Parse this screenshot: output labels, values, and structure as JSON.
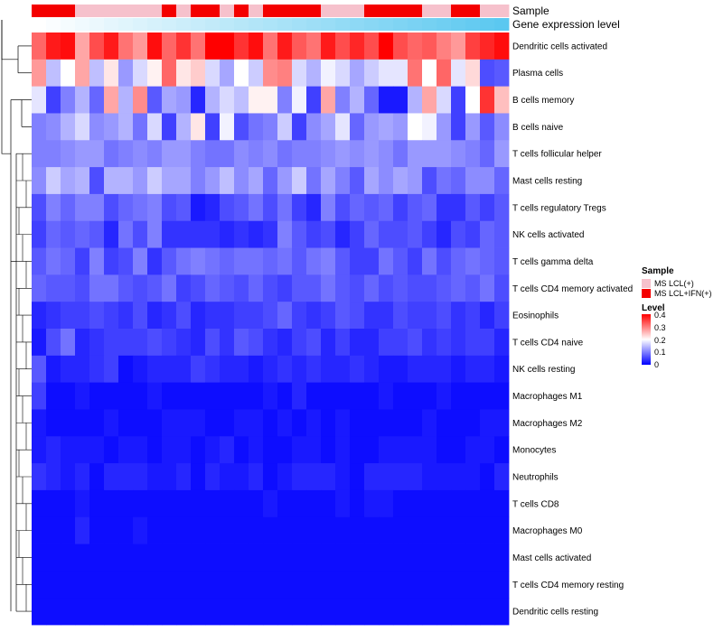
{
  "chart_data": {
    "type": "heatmap",
    "title": "",
    "annotations": {
      "sample_label": "Sample",
      "expression_label": "Gene expression level",
      "sample_groups": [
        "MS LCL(+)",
        "MS LCL+IFN(+)"
      ],
      "sample_colors": {
        "MS LCL(+)": "#f6c1cc",
        "MS LCL+IFN(+)": "#f40000"
      },
      "sample_assignment": [
        1,
        1,
        1,
        0,
        0,
        0,
        0,
        0,
        0,
        1,
        0,
        1,
        1,
        0,
        1,
        0,
        1,
        1,
        1,
        1,
        0,
        0,
        0,
        1,
        1,
        1,
        1,
        0,
        0,
        1,
        1,
        0,
        0
      ],
      "expression_gradient": [
        "#ffffff",
        "#5bc8f0"
      ]
    },
    "rows": [
      "Dendritic cells activated",
      "Plasma cells",
      "B cells memory",
      "B cells naive",
      "T cells follicular helper",
      "Mast cells resting",
      "T cells regulatory  Tregs",
      "NK cells activated",
      "T cells gamma delta",
      "T cells CD4 memory activated",
      "Eosinophils",
      "T cells CD4 naive",
      "NK cells resting",
      "Macrophages M1",
      "Macrophages M2",
      "Monocytes",
      "Neutrophils",
      "T cells CD8",
      "Macrophages M0",
      "Mast cells activated",
      "T cells CD4 memory resting",
      "Dendritic cells resting"
    ],
    "values": [
      [
        0.32,
        0.38,
        0.39,
        0.27,
        0.34,
        0.38,
        0.31,
        0.28,
        0.39,
        0.32,
        0.36,
        0.31,
        0.4,
        0.4,
        0.36,
        0.39,
        0.31,
        0.38,
        0.33,
        0.31,
        0.38,
        0.34,
        0.37,
        0.34,
        0.4,
        0.34,
        0.32,
        0.33,
        0.3,
        0.28,
        0.35,
        0.37,
        0.39
      ],
      [
        0.28,
        0.15,
        0.2,
        0.27,
        0.15,
        0.22,
        0.12,
        0.17,
        0.21,
        0.32,
        0.22,
        0.24,
        0.17,
        0.13,
        0.2,
        0.16,
        0.29,
        0.3,
        0.17,
        0.14,
        0.19,
        0.17,
        0.13,
        0.16,
        0.18,
        0.18,
        0.31,
        0.2,
        0.32,
        0.18,
        0.23,
        0.06,
        0.07
      ],
      [
        0.18,
        0.05,
        0.1,
        0.14,
        0.08,
        0.27,
        0.14,
        0.29,
        0.07,
        0.13,
        0.12,
        0.03,
        0.14,
        0.17,
        0.15,
        0.21,
        0.21,
        0.1,
        0.19,
        0.05,
        0.27,
        0.1,
        0.14,
        0.08,
        0.02,
        0.02,
        0.14,
        0.27,
        0.17,
        0.05,
        0.2,
        0.36,
        0.25
      ],
      [
        0.1,
        0.11,
        0.14,
        0.17,
        0.11,
        0.12,
        0.14,
        0.09,
        0.17,
        0.05,
        0.14,
        0.22,
        0.05,
        0.19,
        0.06,
        0.09,
        0.1,
        0.16,
        0.05,
        0.11,
        0.13,
        0.18,
        0.08,
        0.12,
        0.13,
        0.12,
        0.2,
        0.19,
        0.12,
        0.05,
        0.12,
        0.07,
        0.11
      ],
      [
        0.1,
        0.1,
        0.11,
        0.12,
        0.12,
        0.09,
        0.1,
        0.11,
        0.1,
        0.12,
        0.12,
        0.1,
        0.09,
        0.09,
        0.11,
        0.1,
        0.11,
        0.09,
        0.1,
        0.1,
        0.11,
        0.12,
        0.11,
        0.12,
        0.11,
        0.09,
        0.12,
        0.12,
        0.12,
        0.11,
        0.1,
        0.08,
        0.12
      ],
      [
        0.11,
        0.16,
        0.13,
        0.14,
        0.06,
        0.14,
        0.14,
        0.12,
        0.16,
        0.13,
        0.13,
        0.1,
        0.12,
        0.15,
        0.11,
        0.13,
        0.08,
        0.12,
        0.16,
        0.09,
        0.13,
        0.1,
        0.07,
        0.13,
        0.11,
        0.13,
        0.12,
        0.06,
        0.09,
        0.08,
        0.11,
        0.11,
        0.08
      ],
      [
        0.06,
        0.1,
        0.08,
        0.1,
        0.1,
        0.06,
        0.08,
        0.09,
        0.1,
        0.06,
        0.07,
        0.02,
        0.03,
        0.06,
        0.07,
        0.09,
        0.06,
        0.09,
        0.05,
        0.03,
        0.1,
        0.06,
        0.08,
        0.07,
        0.08,
        0.05,
        0.07,
        0.08,
        0.04,
        0.04,
        0.07,
        0.05,
        0.07
      ],
      [
        0.05,
        0.08,
        0.07,
        0.08,
        0.07,
        0.03,
        0.09,
        0.06,
        0.1,
        0.04,
        0.04,
        0.04,
        0.04,
        0.03,
        0.04,
        0.03,
        0.04,
        0.1,
        0.07,
        0.05,
        0.06,
        0.03,
        0.05,
        0.08,
        0.06,
        0.06,
        0.07,
        0.05,
        0.03,
        0.06,
        0.05,
        0.08,
        0.07
      ],
      [
        0.07,
        0.09,
        0.08,
        0.05,
        0.1,
        0.05,
        0.06,
        0.1,
        0.04,
        0.07,
        0.09,
        0.1,
        0.09,
        0.08,
        0.09,
        0.09,
        0.08,
        0.09,
        0.07,
        0.09,
        0.1,
        0.07,
        0.05,
        0.05,
        0.09,
        0.07,
        0.05,
        0.09,
        0.06,
        0.08,
        0.09,
        0.08,
        0.07
      ],
      [
        0.08,
        0.07,
        0.07,
        0.06,
        0.09,
        0.09,
        0.07,
        0.06,
        0.07,
        0.09,
        0.05,
        0.06,
        0.08,
        0.07,
        0.06,
        0.08,
        0.06,
        0.05,
        0.07,
        0.07,
        0.09,
        0.07,
        0.06,
        0.08,
        0.06,
        0.07,
        0.06,
        0.06,
        0.07,
        0.08,
        0.07,
        0.09,
        0.06
      ],
      [
        0.03,
        0.04,
        0.05,
        0.05,
        0.06,
        0.05,
        0.04,
        0.06,
        0.03,
        0.04,
        0.06,
        0.03,
        0.04,
        0.04,
        0.05,
        0.05,
        0.06,
        0.08,
        0.05,
        0.04,
        0.05,
        0.07,
        0.06,
        0.04,
        0.04,
        0.06,
        0.05,
        0.05,
        0.06,
        0.04,
        0.05,
        0.03,
        0.05
      ],
      [
        0.02,
        0.06,
        0.09,
        0.03,
        0.04,
        0.05,
        0.05,
        0.05,
        0.06,
        0.05,
        0.04,
        0.03,
        0.06,
        0.04,
        0.07,
        0.06,
        0.04,
        0.03,
        0.05,
        0.06,
        0.03,
        0.05,
        0.03,
        0.03,
        0.05,
        0.05,
        0.06,
        0.04,
        0.05,
        0.04,
        0.05,
        0.05,
        0.03
      ],
      [
        0.07,
        0.02,
        0.03,
        0.03,
        0.04,
        0.05,
        0.01,
        0.02,
        0.03,
        0.03,
        0.03,
        0.05,
        0.04,
        0.03,
        0.03,
        0.02,
        0.03,
        0.04,
        0.03,
        0.04,
        0.03,
        0.03,
        0.04,
        0.03,
        0.02,
        0.02,
        0.03,
        0.03,
        0.03,
        0.02,
        0.03,
        0.03,
        0.02
      ],
      [
        0.05,
        0.01,
        0.01,
        0.02,
        0.01,
        0.01,
        0.01,
        0.01,
        0.02,
        0.01,
        0.01,
        0.01,
        0.01,
        0.01,
        0.01,
        0.01,
        0.02,
        0.01,
        0.03,
        0.01,
        0.01,
        0.01,
        0.01,
        0.01,
        0.02,
        0.01,
        0.01,
        0.01,
        0.02,
        0.01,
        0.01,
        0.01,
        0.01
      ],
      [
        0.02,
        0.01,
        0.01,
        0.01,
        0.01,
        0.02,
        0.01,
        0.01,
        0.01,
        0.02,
        0.02,
        0.02,
        0.01,
        0.01,
        0.02,
        0.02,
        0.01,
        0.02,
        0.01,
        0.02,
        0.01,
        0.02,
        0.01,
        0.01,
        0.01,
        0.01,
        0.01,
        0.02,
        0.01,
        0.01,
        0.01,
        0.02,
        0.02
      ],
      [
        0.02,
        0.03,
        0.02,
        0.02,
        0.02,
        0.01,
        0.02,
        0.02,
        0.01,
        0.02,
        0.02,
        0.01,
        0.02,
        0.03,
        0.01,
        0.02,
        0.01,
        0.01,
        0.02,
        0.02,
        0.01,
        0.02,
        0.01,
        0.01,
        0.02,
        0.02,
        0.02,
        0.02,
        0.01,
        0.01,
        0.02,
        0.02,
        0.01
      ],
      [
        0.04,
        0.03,
        0.02,
        0.03,
        0.01,
        0.03,
        0.03,
        0.03,
        0.02,
        0.02,
        0.03,
        0.01,
        0.03,
        0.02,
        0.02,
        0.03,
        0.01,
        0.02,
        0.03,
        0.03,
        0.03,
        0.02,
        0.01,
        0.03,
        0.03,
        0.03,
        0.03,
        0.02,
        0.02,
        0.02,
        0.02,
        0.01,
        0.03
      ],
      [
        0.01,
        0.01,
        0.01,
        0.02,
        0.01,
        0.01,
        0.01,
        0.01,
        0.01,
        0.01,
        0.01,
        0.01,
        0.01,
        0.01,
        0.01,
        0.01,
        0.02,
        0.01,
        0.01,
        0.01,
        0.01,
        0.02,
        0.01,
        0.02,
        0.02,
        0.01,
        0.01,
        0.01,
        0.01,
        0.01,
        0.01,
        0.01,
        0.01
      ],
      [
        0.01,
        0.01,
        0.01,
        0.03,
        0.01,
        0.01,
        0.01,
        0.02,
        0.01,
        0.01,
        0.01,
        0.01,
        0.01,
        0.01,
        0.01,
        0.01,
        0.01,
        0.01,
        0.01,
        0.01,
        0.01,
        0.01,
        0.01,
        0.01,
        0.01,
        0.01,
        0.01,
        0.01,
        0.01,
        0.01,
        0.01,
        0.01,
        0.01
      ],
      [
        0.01,
        0.01,
        0.01,
        0.01,
        0.01,
        0.01,
        0.01,
        0.01,
        0.01,
        0.01,
        0.01,
        0.01,
        0.01,
        0.01,
        0.01,
        0.01,
        0.01,
        0.01,
        0.01,
        0.01,
        0.01,
        0.01,
        0.01,
        0.01,
        0.01,
        0.01,
        0.01,
        0.01,
        0.01,
        0.01,
        0.01,
        0.01,
        0.01
      ],
      [
        0.01,
        0.01,
        0.01,
        0.01,
        0.01,
        0.01,
        0.01,
        0.01,
        0.01,
        0.01,
        0.01,
        0.01,
        0.01,
        0.01,
        0.01,
        0.01,
        0.01,
        0.01,
        0.01,
        0.01,
        0.01,
        0.01,
        0.01,
        0.01,
        0.01,
        0.01,
        0.01,
        0.01,
        0.01,
        0.01,
        0.01,
        0.01,
        0.01
      ],
      [
        0.01,
        0.01,
        0.01,
        0.01,
        0.01,
        0.01,
        0.01,
        0.01,
        0.01,
        0.01,
        0.01,
        0.01,
        0.01,
        0.01,
        0.01,
        0.01,
        0.01,
        0.01,
        0.01,
        0.01,
        0.01,
        0.01,
        0.01,
        0.01,
        0.01,
        0.01,
        0.01,
        0.01,
        0.01,
        0.01,
        0.01,
        0.01,
        0.01
      ]
    ],
    "color_scale": {
      "min": 0,
      "max": 0.4,
      "low": "#0000ff",
      "mid": "#ffffff",
      "high": "#ff0000"
    },
    "legend": {
      "sample_title": "Sample",
      "level_title": "Level",
      "level_ticks": [
        "0.4",
        "0.3",
        "0.2",
        "0.1",
        "0"
      ],
      "position": "right"
    }
  }
}
